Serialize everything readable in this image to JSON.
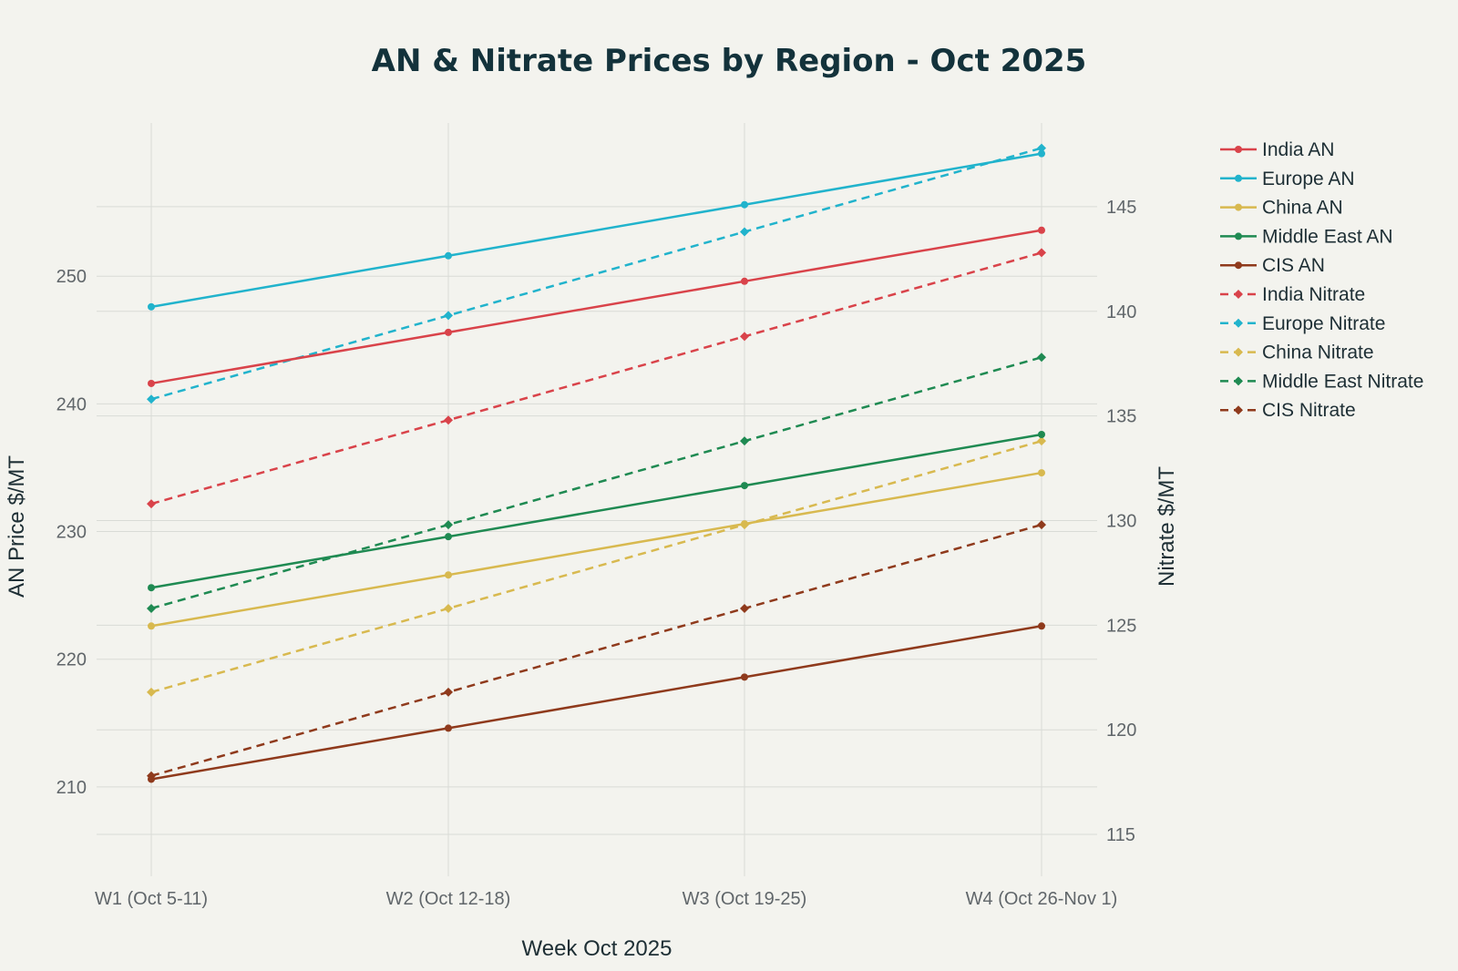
{
  "chart_data": {
    "type": "line",
    "title": "AN & Nitrate Prices by Region - Oct 2025",
    "xlabel": "Week Oct 2025",
    "ylabel_left": "AN Price $/MT",
    "ylabel_right": "Nitrate $/MT",
    "categories": [
      "W1 (Oct 5-11)",
      "W2 (Oct 12-18)",
      "W3 (Oct 19-25)",
      "W4 (Oct 26-Nov 1)"
    ],
    "ylim_left": [
      203,
      262
    ],
    "ylim_right": [
      113,
      149
    ],
    "yticks_left": [
      210,
      220,
      230,
      240,
      250
    ],
    "yticks_right": [
      115,
      120,
      125,
      130,
      135,
      140,
      145
    ],
    "grid": true,
    "legend_position": "right",
    "series": [
      {
        "name": "India AN",
        "axis": "left",
        "style": "solid",
        "marker": "circle",
        "color": "#d9434a",
        "values": [
          241.6,
          245.6,
          249.6,
          253.6
        ]
      },
      {
        "name": "Europe AN",
        "axis": "left",
        "style": "solid",
        "marker": "circle",
        "color": "#21b3cc",
        "values": [
          247.6,
          251.6,
          255.6,
          259.6
        ]
      },
      {
        "name": "China AN",
        "axis": "left",
        "style": "solid",
        "marker": "circle",
        "color": "#d8b94f",
        "values": [
          222.6,
          226.6,
          230.6,
          234.6
        ]
      },
      {
        "name": "Middle East AN",
        "axis": "left",
        "style": "solid",
        "marker": "circle",
        "color": "#1f8a52",
        "values": [
          225.6,
          229.6,
          233.6,
          237.6
        ]
      },
      {
        "name": "CIS AN",
        "axis": "left",
        "style": "solid",
        "marker": "circle",
        "color": "#8f3a1c",
        "values": [
          210.6,
          214.6,
          218.6,
          222.6
        ]
      },
      {
        "name": "India Nitrate",
        "axis": "right",
        "style": "dashed",
        "marker": "diamond",
        "color": "#d9434a",
        "values": [
          130.8,
          134.8,
          138.8,
          142.8
        ]
      },
      {
        "name": "Europe Nitrate",
        "axis": "right",
        "style": "dashed",
        "marker": "diamond",
        "color": "#21b3cc",
        "values": [
          135.8,
          139.8,
          143.8,
          147.8
        ]
      },
      {
        "name": "China Nitrate",
        "axis": "right",
        "style": "dashed",
        "marker": "diamond",
        "color": "#d8b94f",
        "values": [
          121.8,
          125.8,
          129.8,
          133.8
        ]
      },
      {
        "name": "Middle East Nitrate",
        "axis": "right",
        "style": "dashed",
        "marker": "diamond",
        "color": "#1f8a52",
        "values": [
          125.8,
          129.8,
          133.8,
          137.8
        ]
      },
      {
        "name": "CIS Nitrate",
        "axis": "right",
        "style": "dashed",
        "marker": "diamond",
        "color": "#8f3a1c",
        "values": [
          117.8,
          121.8,
          125.8,
          129.8
        ]
      }
    ]
  }
}
